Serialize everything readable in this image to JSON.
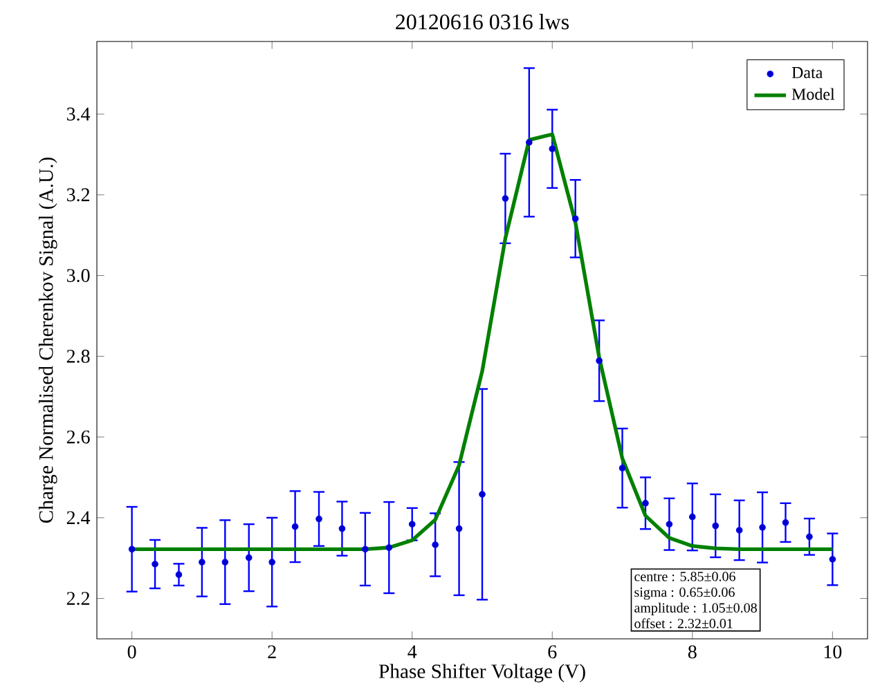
{
  "chart_data": {
    "type": "scatter",
    "title": "20120616 0316 lws",
    "xlabel": "Phase Shifter Voltage (V)",
    "ylabel": "Charge Normalised Cherenkov Signal (A.U.)",
    "xlim": [
      -0.5,
      10.5
    ],
    "ylim": [
      2.1,
      3.58
    ],
    "xticks": [
      0,
      2,
      4,
      6,
      8,
      10
    ],
    "yticks": [
      2.2,
      2.4,
      2.6,
      2.8,
      {
        "value": 3,
        "label": "3.0"
      },
      3.2,
      3.4
    ],
    "legend": "top right",
    "grid": false,
    "series": [
      {
        "name": "Data",
        "marker": "circle",
        "color": "#0000ff",
        "x": [
          0,
          0.33,
          0.67,
          1,
          1.33,
          1.67,
          2,
          2.33,
          2.67,
          3,
          3.33,
          3.67,
          4,
          4.33,
          4.67,
          5,
          5.33,
          5.67,
          6,
          6.33,
          6.67,
          7,
          7.33,
          7.67,
          8,
          8.33,
          8.67,
          9,
          9.33,
          9.67,
          10
        ],
        "values": [
          2.322,
          2.285,
          2.259,
          2.29,
          2.29,
          2.301,
          2.29,
          2.378,
          2.397,
          2.373,
          2.322,
          2.326,
          2.384,
          2.333,
          2.373,
          2.458,
          3.191,
          3.33,
          3.314,
          3.141,
          2.789,
          2.523,
          2.436,
          2.384,
          2.402,
          2.38,
          2.369,
          2.376,
          2.388,
          2.353,
          2.297
        ],
        "errors": [
          0.105,
          0.06,
          0.027,
          0.085,
          0.104,
          0.083,
          0.11,
          0.088,
          0.067,
          0.067,
          0.09,
          0.113,
          0.04,
          0.078,
          0.165,
          0.261,
          0.111,
          0.184,
          0.097,
          0.096,
          0.1,
          0.098,
          0.064,
          0.064,
          0.083,
          0.078,
          0.074,
          0.087,
          0.048,
          0.045,
          0.064
        ]
      },
      {
        "name": "Model",
        "type": "line",
        "marker": "none",
        "line_style": "solid",
        "color": "#008000",
        "x": [
          0,
          0.33,
          0.67,
          1,
          1.33,
          1.67,
          2,
          2.33,
          2.67,
          3,
          3.33,
          3.67,
          4,
          4.33,
          4.67,
          5,
          5.33,
          5.67,
          6,
          6.33,
          6.67,
          7,
          7.33,
          7.67,
          8,
          8.33,
          8.67,
          9,
          9.33,
          9.67,
          10
        ],
        "values": [
          2.322,
          2.322,
          2.322,
          2.322,
          2.322,
          2.322,
          2.322,
          2.322,
          2.322,
          2.322,
          2.322,
          2.326,
          2.344,
          2.395,
          2.53,
          2.763,
          3.092,
          3.336,
          3.35,
          3.132,
          2.797,
          2.547,
          2.405,
          2.35,
          2.33,
          2.324,
          2.322,
          2.322,
          2.322,
          2.322,
          2.322
        ]
      }
    ],
    "annotations": [
      "centre : 5.85±0.06",
      "sigma : 0.65±0.06",
      "amplitude : 1.05±0.08",
      "offset : 2.32±0.01"
    ]
  }
}
